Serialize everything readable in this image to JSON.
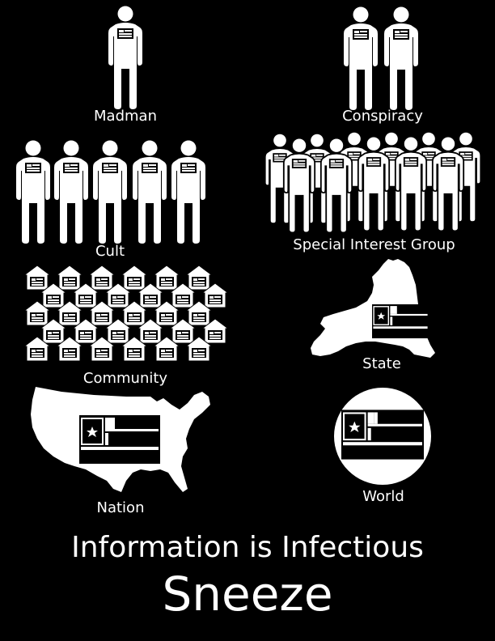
{
  "labels": {
    "madman": "Madman",
    "conspiracy": "Conspiracy",
    "cult": "Cult",
    "special_interest_group": "Special Interest Group",
    "community": "Community",
    "state": "State",
    "nation": "Nation",
    "world": "World"
  },
  "headline": "Information is Infectious",
  "title": "Sneeze",
  "colors": {
    "background": "#000000",
    "foreground": "#ffffff"
  },
  "icons": [
    "person-icon",
    "house-icon",
    "state-map",
    "nation-map",
    "world-globe",
    "star-icon"
  ]
}
